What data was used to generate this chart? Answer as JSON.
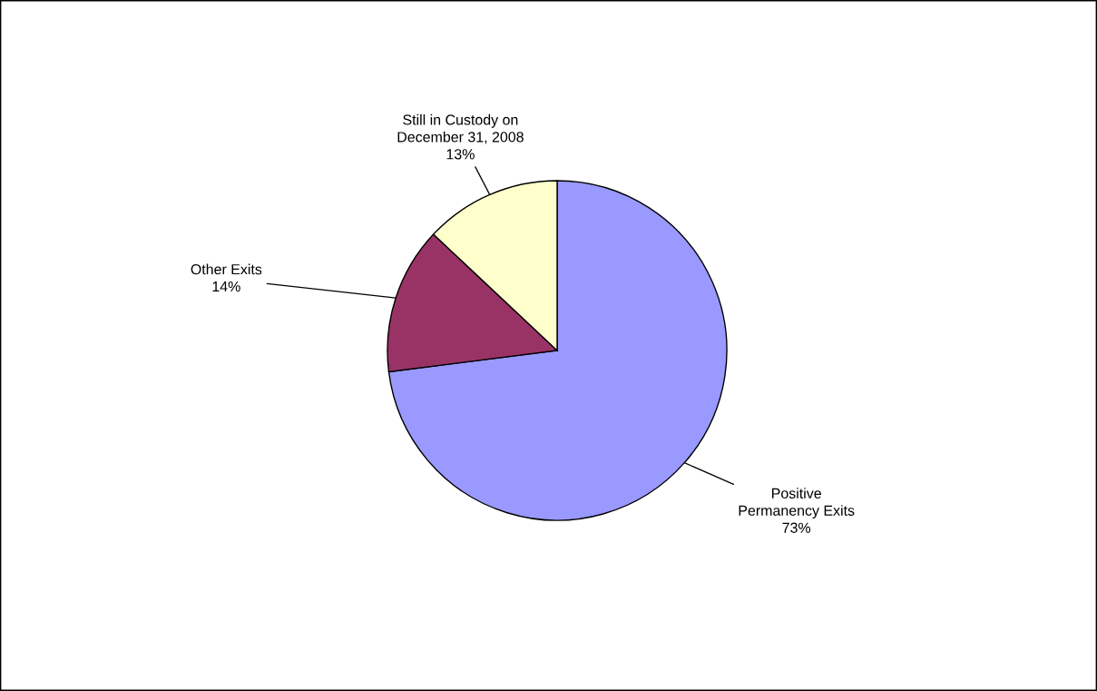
{
  "chart_data": {
    "type": "pie",
    "categories": [
      "Positive\nPermanency Exits",
      "Other Exits",
      "Still in Custody on\nDecember 31, 2008"
    ],
    "values": [
      73,
      14,
      13
    ],
    "value_labels": [
      "73%",
      "14%",
      "13%"
    ],
    "colors": [
      "#9999ff",
      "#993366",
      "#ffffcc"
    ]
  }
}
